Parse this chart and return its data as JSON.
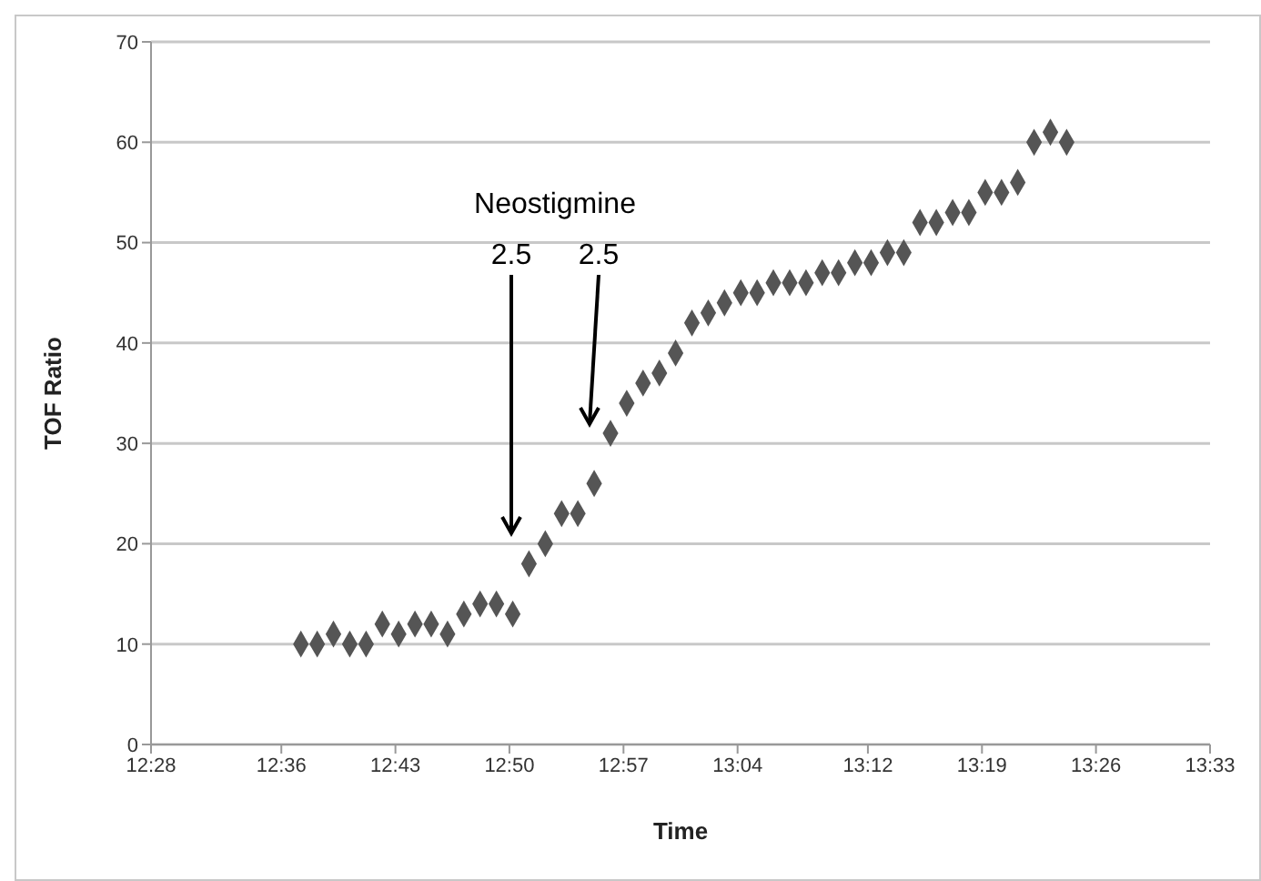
{
  "chart_data": {
    "type": "scatter",
    "xlabel": "Time",
    "ylabel": "TOF Ratio",
    "marker": "diamond",
    "grid": "y",
    "xlim": [
      12.4667,
      13.55
    ],
    "ylim": [
      0,
      70
    ],
    "xticks": [
      {
        "value": 12.4667,
        "label": "12:28"
      },
      {
        "value": 12.6,
        "label": "12:36"
      },
      {
        "value": 12.7167,
        "label": "12:43"
      },
      {
        "value": 12.8333,
        "label": "12:50"
      },
      {
        "value": 12.95,
        "label": "12:57"
      },
      {
        "value": 13.0667,
        "label": "13:04"
      },
      {
        "value": 13.2,
        "label": "13:12"
      },
      {
        "value": 13.3167,
        "label": "13:19"
      },
      {
        "value": 13.4333,
        "label": "13:26"
      },
      {
        "value": 13.55,
        "label": "13:33"
      }
    ],
    "yticks": [
      0,
      10,
      20,
      30,
      40,
      50,
      60,
      70
    ],
    "annotations": [
      "Neostigmine",
      "2.5",
      "2.5"
    ],
    "series": [
      {
        "color": "#555555",
        "x": [
          12.62,
          12.6367,
          12.6533,
          12.67,
          12.6867,
          12.7033,
          12.72,
          12.7367,
          12.7533,
          12.77,
          12.7867,
          12.8033,
          12.82,
          12.8367,
          12.8533,
          12.87,
          12.8867,
          12.9033,
          12.92,
          12.9367,
          12.9533,
          12.97,
          12.9867,
          13.0033,
          13.02,
          13.0367,
          13.0533,
          13.07,
          13.0867,
          13.1033,
          13.12,
          13.1367,
          13.1533,
          13.17,
          13.1867,
          13.2033,
          13.22,
          13.2367,
          13.2533,
          13.27,
          13.2867,
          13.3033,
          13.32,
          13.3367,
          13.3533,
          13.37,
          13.3867,
          13.4033
        ],
        "values": [
          10,
          10,
          11,
          10,
          10,
          12,
          11,
          12,
          12,
          11,
          13,
          14,
          14,
          13,
          18,
          20,
          23,
          23,
          26,
          31,
          34,
          36,
          37,
          39,
          42,
          43,
          44,
          45,
          45,
          46,
          46,
          46,
          47,
          47,
          48,
          48,
          49,
          49,
          52,
          52,
          53,
          53,
          55,
          55,
          56,
          60,
          61,
          60
        ]
      }
    ]
  }
}
